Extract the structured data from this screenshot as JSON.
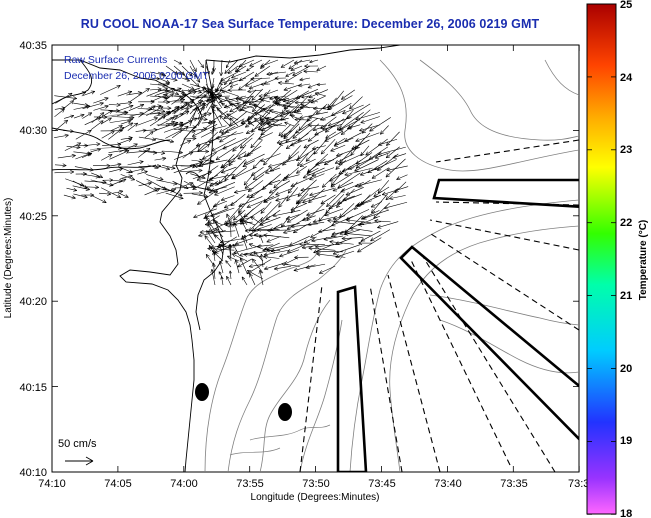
{
  "title": "RU COOL  NOAA-17  Sea Surface Temperature:  December 26, 2006 0219 GMT",
  "overlay_lines": [
    "Raw Surface Currents",
    "December 26, 2006 0200 GMT"
  ],
  "scale_label": "50 cm/s",
  "xlabel": "Longitude (Degrees:Minutes)",
  "ylabel": "Latitude (Degrees:Minutes)",
  "x_ticks": [
    "74:10",
    "74:05",
    "74:00",
    "73:55",
    "73:50",
    "73:45",
    "73:40",
    "73:35",
    "73:3"
  ],
  "y_ticks": [
    "40:35",
    "40:30",
    "40:25",
    "40:20",
    "40:15",
    "40:10"
  ],
  "colorbar": {
    "label": "Temperature (°C)",
    "ticks": [
      "25",
      "24",
      "23",
      "22",
      "21",
      "20",
      "19",
      "18"
    ]
  },
  "colors": {
    "title": "#1a2db0",
    "vectors": "#000000",
    "coast": "#000000",
    "contours": "#777777"
  }
}
